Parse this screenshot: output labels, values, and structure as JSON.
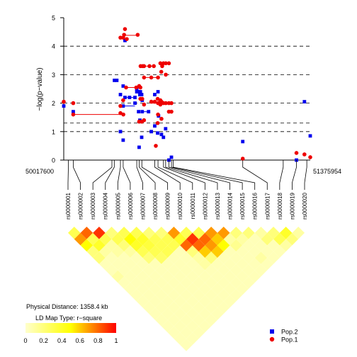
{
  "chart_data": {
    "type": "scatter",
    "title": "",
    "ylabel": "−log(p−value)",
    "ylim": [
      0,
      5
    ],
    "yticks": [
      "0",
      "1",
      "2",
      "3",
      "4",
      "5"
    ],
    "reference_lines": [
      1.0,
      1.3,
      2.0,
      3.0,
      4.0
    ],
    "grid": false,
    "legend_position": "bottom-right",
    "x_start_label": "50017600",
    "x_end_label": "51375954",
    "xlim": [
      50017600,
      51375954
    ],
    "snp_labels": [
      "rs0000001",
      "rs0000002",
      "rs0000003",
      "rs0000004",
      "rs0000005",
      "rs0000006",
      "rs0000007",
      "rs0000008",
      "rs0000009",
      "rs0000010",
      "rs0000011",
      "rs0000012",
      "rs0000013",
      "rs0000014",
      "rs0000015",
      "rs0000016",
      "rs0000017",
      "rs0000018",
      "rs0000019",
      "rs0000020"
    ],
    "snp_positions": [
      50043000,
      50070000,
      50283000,
      50296000,
      50330000,
      50345000,
      50420000,
      50433000,
      50448000,
      50519000,
      50537000,
      50567000,
      50579000,
      50597000,
      50611000,
      50621000,
      51004000,
      51227000,
      51300000,
      51357000
    ],
    "physical_distance_label": "Physical Distance: 1358.4 kb",
    "ld_type_label": "LD Map Type: r−square",
    "ld_colorbar_ticks": [
      "0",
      "0.2",
      "0.4",
      "0.6",
      "0.8",
      "1"
    ],
    "ld_color_low": "#ffffcc",
    "ld_color_mid": "#ffff00",
    "ld_color_high": "#ff0000",
    "series": [
      {
        "name": "Pop.2",
        "color": "#0000ee",
        "marker": "square",
        "points": [
          [
            50017600,
            1.9
          ],
          [
            50070000,
            1.7
          ],
          [
            50297000,
            2.8
          ],
          [
            50310000,
            2.8
          ],
          [
            50330000,
            1.0
          ],
          [
            50345000,
            0.7
          ],
          [
            50345000,
            2.6
          ],
          [
            50330000,
            2.3
          ],
          [
            50355000,
            4.2
          ],
          [
            50355000,
            2.2
          ],
          [
            50345000,
            1.9
          ],
          [
            50380000,
            2.2
          ],
          [
            50410000,
            2.2
          ],
          [
            50410000,
            2.0
          ],
          [
            50420000,
            2.5
          ],
          [
            50420000,
            2.4
          ],
          [
            50430000,
            2.4
          ],
          [
            50440000,
            2.4
          ],
          [
            50437000,
            2.3
          ],
          [
            50447000,
            2.3
          ],
          [
            50450000,
            2.1
          ],
          [
            50450000,
            1.7
          ],
          [
            50430000,
            1.7
          ],
          [
            50437000,
            1.4
          ],
          [
            50433000,
            0.45
          ],
          [
            50447000,
            0.8
          ],
          [
            50485000,
            1.7
          ],
          [
            50500000,
            1.0
          ],
          [
            50519000,
            1.2
          ],
          [
            50519000,
            2.3
          ],
          [
            50535000,
            0.95
          ],
          [
            50540000,
            1.55
          ],
          [
            50537000,
            2.4
          ],
          [
            50556000,
            0.9
          ],
          [
            50567000,
            0.8
          ],
          [
            50579000,
            1.1
          ],
          [
            50597000,
            0.0
          ],
          [
            50611000,
            0.1
          ],
          [
            51004000,
            0.65
          ],
          [
            51300000,
            0.0
          ],
          [
            51344000,
            2.05
          ],
          [
            51375954,
            0.85
          ]
        ]
      },
      {
        "name": "Pop.1",
        "color": "#ee0000",
        "marker": "circle",
        "points": [
          [
            50017600,
            2.05
          ],
          [
            50070000,
            2.0
          ],
          [
            50070000,
            1.6
          ],
          [
            50330000,
            1.65
          ],
          [
            50346000,
            1.6
          ],
          [
            50330000,
            1.9
          ],
          [
            50345000,
            2.1
          ],
          [
            50330000,
            4.3
          ],
          [
            50345000,
            4.3
          ],
          [
            50350000,
            4.4
          ],
          [
            50355000,
            4.6
          ],
          [
            50365000,
            4.25
          ],
          [
            50425000,
            4.4
          ],
          [
            50361000,
            2.55
          ],
          [
            50417000,
            2.55
          ],
          [
            50433000,
            2.6
          ],
          [
            50440000,
            2.55
          ],
          [
            50440000,
            2.15
          ],
          [
            50450000,
            2.15
          ],
          [
            50433000,
            1.35
          ],
          [
            50448000,
            1.35
          ],
          [
            50460000,
            1.4
          ],
          [
            50460000,
            1.95
          ],
          [
            50441000,
            3.3
          ],
          [
            50452000,
            3.3
          ],
          [
            50460000,
            3.3
          ],
          [
            50490000,
            3.3
          ],
          [
            50514000,
            3.3
          ],
          [
            50460000,
            2.9
          ],
          [
            50500000,
            2.9
          ],
          [
            50537000,
            2.9
          ],
          [
            50500000,
            2.05
          ],
          [
            50519000,
            2.05
          ],
          [
            50535000,
            2.15
          ],
          [
            50537000,
            2.0
          ],
          [
            50545000,
            2.0
          ],
          [
            50550000,
            2.1
          ],
          [
            50550000,
            1.95
          ],
          [
            50556000,
            2.05
          ],
          [
            50537000,
            1.6
          ],
          [
            50535000,
            1.3
          ],
          [
            50556000,
            1.45
          ],
          [
            50525000,
            0.5
          ],
          [
            50550000,
            3.4
          ],
          [
            50560000,
            3.3
          ],
          [
            50567000,
            3.4
          ],
          [
            50580000,
            3.4
          ],
          [
            50597000,
            3.4
          ],
          [
            50555000,
            3.1
          ],
          [
            50580000,
            3.0
          ],
          [
            50567000,
            2.0
          ],
          [
            50580000,
            2.0
          ],
          [
            50597000,
            2.0
          ],
          [
            50611000,
            2.0
          ],
          [
            50597000,
            1.7
          ],
          [
            50611000,
            1.7
          ],
          [
            51004000,
            0.05
          ],
          [
            51300000,
            0.25
          ],
          [
            51344000,
            0.2
          ],
          [
            51375954,
            0.1
          ]
        ]
      }
    ],
    "connections": [
      {
        "series": "Pop.1",
        "y": 1.6,
        "x": [
          50070000,
          50346000
        ]
      },
      {
        "series": "Pop.1",
        "y": 4.38,
        "x": [
          50355000,
          50425000
        ]
      },
      {
        "series": "Pop.1",
        "y": 2.55,
        "x": [
          50361000,
          50440000
        ]
      },
      {
        "series": "Pop.1",
        "y": 3.3,
        "x": [
          50441000,
          50514000
        ]
      },
      {
        "series": "Pop.1",
        "y": 2.9,
        "x": [
          50460000,
          50537000
        ]
      },
      {
        "series": "Pop.1",
        "y": 2.0,
        "x": [
          50500000,
          50611000
        ]
      },
      {
        "series": "Pop.1",
        "y": 3.4,
        "x": [
          50550000,
          50597000
        ]
      },
      {
        "series": "Pop.2",
        "y": 2.2,
        "x": [
          50355000,
          50410000
        ]
      },
      {
        "series": "Pop.2",
        "y": 1.9,
        "x": [
          50345000,
          50410000
        ]
      },
      {
        "series": "Pop.2",
        "y": 1.7,
        "x": [
          50450000,
          50485000
        ]
      }
    ],
    "ld_matrix_r2": [
      [
        0,
        0.3,
        0.7,
        0.5,
        0.2,
        0.2,
        0.05,
        0.05,
        0.1,
        0.05,
        0.05,
        0.05,
        0.05,
        0.05,
        0.05,
        0.05,
        0.05,
        0.05,
        0.05,
        0.05
      ],
      [
        0,
        0,
        0.8,
        0.3,
        0.4,
        0.1,
        0.05,
        0.05,
        0.05,
        0.05,
        0.05,
        0.05,
        0.05,
        0.05,
        0.05,
        0.05,
        0.05,
        0.05,
        0.05,
        0.05
      ],
      [
        0,
        0,
        0,
        0.9,
        0.3,
        0.1,
        0.1,
        0.05,
        0.05,
        0.05,
        0.05,
        0.05,
        0.05,
        0.05,
        0.05,
        0.05,
        0.05,
        0.05,
        0.05,
        0.05
      ],
      [
        0,
        0,
        0,
        0,
        0.2,
        0.3,
        0.2,
        0.1,
        0.05,
        0.05,
        0.05,
        0.05,
        0.05,
        0.05,
        0.05,
        0.05,
        0.05,
        0.05,
        0.05,
        0.05
      ],
      [
        0,
        0,
        0,
        0,
        0,
        0.3,
        0.5,
        0.4,
        0.3,
        0.2,
        0.05,
        0.05,
        0.05,
        0.05,
        0.05,
        0.05,
        0.05,
        0.05,
        0.05,
        0.05
      ],
      [
        0,
        0,
        0,
        0,
        0,
        0,
        0.3,
        0.4,
        0.35,
        0.3,
        0.25,
        0.05,
        0.05,
        0.05,
        0.05,
        0.05,
        0.05,
        0.05,
        0.05,
        0.05
      ],
      [
        0,
        0,
        0,
        0,
        0,
        0,
        0,
        0.2,
        0.3,
        0.3,
        0.3,
        0.05,
        0.05,
        0.05,
        0.05,
        0.05,
        0.05,
        0.05,
        0.05,
        0.05
      ],
      [
        0,
        0,
        0,
        0,
        0,
        0,
        0,
        0,
        0.2,
        0.3,
        0.3,
        0.05,
        0.05,
        0.05,
        0.05,
        0.05,
        0.05,
        0.05,
        0.05,
        0.05
      ],
      [
        0,
        0,
        0,
        0,
        0,
        0,
        0,
        0,
        0,
        0.7,
        0.4,
        0.8,
        0.2,
        0.1,
        0.1,
        0.05,
        0.05,
        0.05,
        0.05,
        0.05
      ],
      [
        0,
        0,
        0,
        0,
        0,
        0,
        0,
        0,
        0,
        0,
        0.3,
        0.9,
        0.8,
        0.6,
        0.2,
        0.05,
        0.05,
        0.05,
        0.05,
        0.05
      ],
      [
        0,
        0,
        0,
        0,
        0,
        0,
        0,
        0,
        0,
        0,
        0,
        0.3,
        0.8,
        0.7,
        0.6,
        0.05,
        0.05,
        0.05,
        0.05,
        0.05
      ],
      [
        0,
        0,
        0,
        0,
        0,
        0,
        0,
        0,
        0,
        0,
        0,
        0,
        0.7,
        0.6,
        0.5,
        0.05,
        0.05,
        0.05,
        0.05,
        0.05
      ],
      [
        0,
        0,
        0,
        0,
        0,
        0,
        0,
        0,
        0,
        0,
        0,
        0,
        0,
        0.7,
        0.1,
        0.15,
        0.05,
        0.05,
        0.05,
        0.05
      ],
      [
        0,
        0,
        0,
        0,
        0,
        0,
        0,
        0,
        0,
        0,
        0,
        0,
        0,
        0,
        0.2,
        0.1,
        0.05,
        0.05,
        0.1,
        0.05
      ],
      [
        0,
        0,
        0,
        0,
        0,
        0,
        0,
        0,
        0,
        0,
        0,
        0,
        0,
        0,
        0,
        0.2,
        0.05,
        0.05,
        0.05,
        0.05
      ],
      [
        0,
        0,
        0,
        0,
        0,
        0,
        0,
        0,
        0,
        0,
        0,
        0,
        0,
        0,
        0,
        0,
        0.1,
        0.2,
        0.05,
        0.05
      ],
      [
        0,
        0,
        0,
        0,
        0,
        0,
        0,
        0,
        0,
        0,
        0,
        0,
        0,
        0,
        0,
        0,
        0,
        0.2,
        0.3,
        0.1
      ],
      [
        0,
        0,
        0,
        0,
        0,
        0,
        0,
        0,
        0,
        0,
        0,
        0,
        0,
        0,
        0,
        0,
        0,
        0,
        0.4,
        0.2
      ],
      [
        0,
        0,
        0,
        0,
        0,
        0,
        0,
        0,
        0,
        0,
        0,
        0,
        0,
        0,
        0,
        0,
        0,
        0,
        0,
        0.1
      ],
      [
        0,
        0,
        0,
        0,
        0,
        0,
        0,
        0,
        0,
        0,
        0,
        0,
        0,
        0,
        0,
        0,
        0,
        0,
        0,
        0
      ]
    ]
  }
}
